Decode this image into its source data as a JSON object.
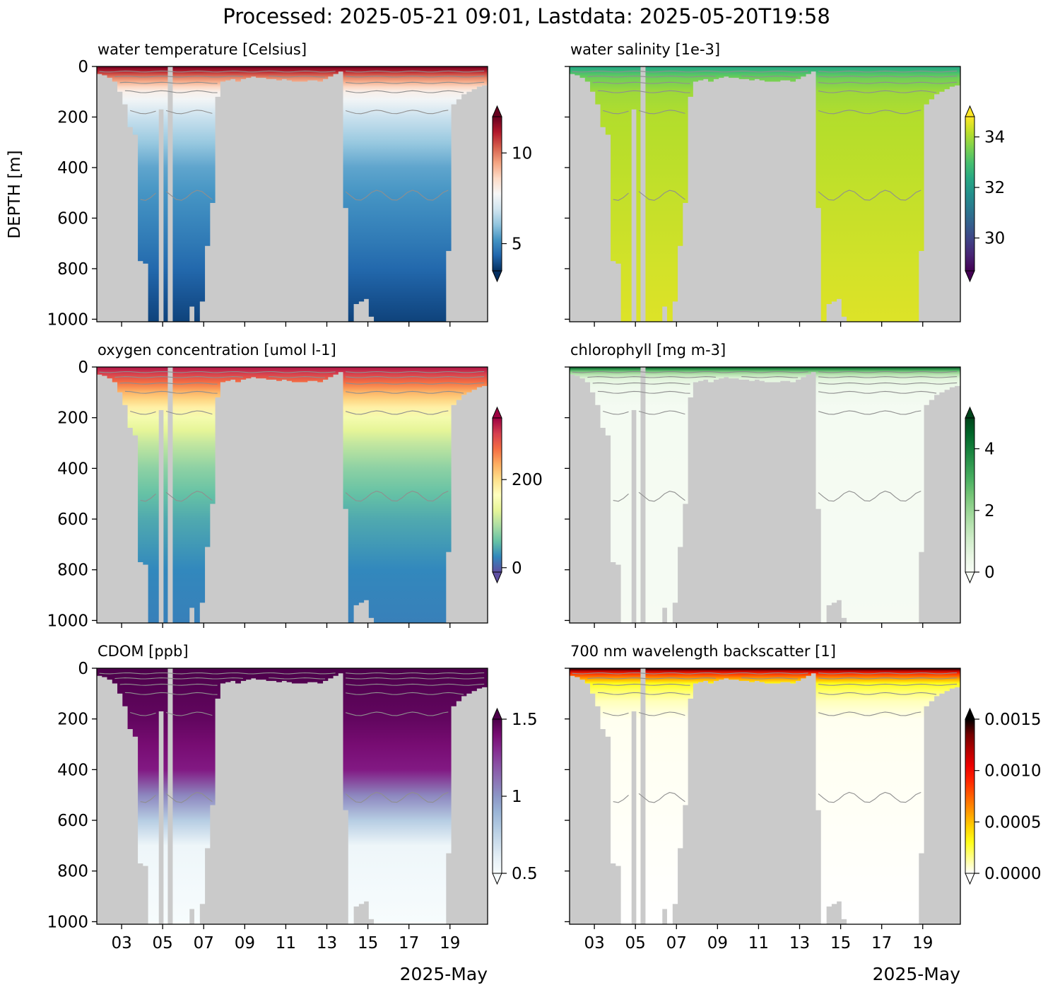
{
  "figure_title": "Processed: 2025-05-21 09:01, Lastdata: 2025-05-20T19:58",
  "y_axis_label": "DEPTH [m]",
  "x_axis_month_label": "2025-May",
  "x_tick_labels": [
    "03",
    "05",
    "07",
    "09",
    "11",
    "13",
    "15",
    "17",
    "19"
  ],
  "y_tick_labels": [
    "0",
    "200",
    "400",
    "600",
    "800",
    "1000"
  ],
  "colors": {
    "nodata": "#cacaca",
    "contour": "#8f8f8f"
  },
  "chart_data": [
    {
      "type": "heatmap",
      "title": "water temperature [Celsius]",
      "x": "date (May 2025)",
      "xlim": [
        "2025-05-01T19:00",
        "2025-05-20T20:00"
      ],
      "y": "DEPTH [m]",
      "ylim": [
        1010,
        0
      ],
      "grid": false,
      "colormap": "RdBu_r",
      "colorbar_range": [
        3.5,
        12
      ],
      "colorbar_ticks": [
        5,
        10
      ],
      "colorbar_extend": "both",
      "profile": [
        {
          "depth": 0,
          "value": 12
        },
        {
          "depth": 40,
          "value": 10
        },
        {
          "depth": 100,
          "value": 8
        },
        {
          "depth": 200,
          "value": 6.8
        },
        {
          "depth": 400,
          "value": 5.5
        },
        {
          "depth": 700,
          "value": 4.7
        },
        {
          "depth": 1000,
          "value": 3.8
        }
      ]
    },
    {
      "type": "heatmap",
      "title": "water salinity [1e-3]",
      "x": "date (May 2025)",
      "xlim": [
        "2025-05-01T19:00",
        "2025-05-20T20:00"
      ],
      "y": "DEPTH [m]",
      "ylim": [
        1010,
        0
      ],
      "grid": false,
      "colormap": "viridis",
      "colorbar_range": [
        28.7,
        34.8
      ],
      "colorbar_ticks": [
        30,
        32,
        34
      ],
      "colorbar_extend": "both",
      "profile": [
        {
          "depth": 0,
          "value": 32.3
        },
        {
          "depth": 40,
          "value": 33.4
        },
        {
          "depth": 100,
          "value": 33.9
        },
        {
          "depth": 200,
          "value": 34.1
        },
        {
          "depth": 600,
          "value": 34.3
        },
        {
          "depth": 1000,
          "value": 34.5
        }
      ]
    },
    {
      "type": "heatmap",
      "title": "oxygen concentration [umol l-1]",
      "x": "date (May 2025)",
      "xlim": [
        "2025-05-01T19:00",
        "2025-05-20T20:00"
      ],
      "y": "DEPTH [m]",
      "ylim": [
        1010,
        0
      ],
      "grid": false,
      "colormap": "Spectral_r",
      "colorbar_range": [
        -10,
        340
      ],
      "colorbar_ticks": [
        0,
        200
      ],
      "colorbar_extend": "both",
      "profile": [
        {
          "depth": 0,
          "value": 330
        },
        {
          "depth": 40,
          "value": 290
        },
        {
          "depth": 100,
          "value": 230
        },
        {
          "depth": 200,
          "value": 150
        },
        {
          "depth": 350,
          "value": 90
        },
        {
          "depth": 550,
          "value": 50
        },
        {
          "depth": 800,
          "value": 25
        },
        {
          "depth": 1000,
          "value": 20
        }
      ]
    },
    {
      "type": "heatmap",
      "title": "chlorophyll [mg m-3]",
      "x": "date (May 2025)",
      "xlim": [
        "2025-05-01T19:00",
        "2025-05-20T20:00"
      ],
      "y": "DEPTH [m]",
      "ylim": [
        1010,
        0
      ],
      "grid": false,
      "colormap": "Greens",
      "colorbar_range": [
        0,
        5
      ],
      "colorbar_ticks": [
        0,
        2,
        4
      ],
      "colorbar_extend": "both",
      "profile": [
        {
          "depth": 0,
          "value": 5
        },
        {
          "depth": 15,
          "value": 2.5
        },
        {
          "depth": 40,
          "value": 0.8
        },
        {
          "depth": 80,
          "value": 0.3
        },
        {
          "depth": 150,
          "value": 0.1
        },
        {
          "depth": 1000,
          "value": 0.05
        }
      ]
    },
    {
      "type": "heatmap",
      "title": "CDOM [ppb]",
      "x": "date (May 2025)",
      "xlim": [
        "2025-05-01T19:00",
        "2025-05-20T20:00"
      ],
      "y": "DEPTH [m]",
      "ylim": [
        1010,
        0
      ],
      "grid": false,
      "colormap": "BuPu",
      "colorbar_range": [
        0.5,
        1.5
      ],
      "colorbar_ticks": [
        0.5,
        1.0,
        1.5
      ],
      "colorbar_extend": "both",
      "profile": [
        {
          "depth": 0,
          "value": 1.5
        },
        {
          "depth": 200,
          "value": 1.45
        },
        {
          "depth": 400,
          "value": 1.35
        },
        {
          "depth": 550,
          "value": 0.9
        },
        {
          "depth": 700,
          "value": 0.55
        },
        {
          "depth": 1000,
          "value": 0.5
        }
      ]
    },
    {
      "type": "heatmap",
      "title": "700 nm wavelength backscatter [1]",
      "x": "date (May 2025)",
      "xlim": [
        "2025-05-01T19:00",
        "2025-05-20T20:00"
      ],
      "y": "DEPTH [m]",
      "ylim": [
        1010,
        0
      ],
      "grid": false,
      "colormap": "hot_r",
      "colorbar_range": [
        0,
        0.0015
      ],
      "colorbar_ticks": [
        0.0,
        0.0005,
        0.001,
        0.0015
      ],
      "colorbar_tick_labels": [
        "0.0000",
        "0.0005",
        "0.0010",
        "0.0015"
      ],
      "colorbar_extend": "both",
      "profile": [
        {
          "depth": 0,
          "value": 0.0015
        },
        {
          "depth": 20,
          "value": 0.0009
        },
        {
          "depth": 60,
          "value": 0.0003
        },
        {
          "depth": 120,
          "value": 0.0001
        },
        {
          "depth": 200,
          "value": 2e-05
        },
        {
          "depth": 1000,
          "value": 0
        }
      ]
    }
  ],
  "dive_coverage": {
    "description": "maximum sampled depth [m] per time bin; deeper region is no-data",
    "xlim": [
      "2025-05-01T19:00",
      "2025-05-20T20:00"
    ],
    "bin_hours": 6,
    "max_depth": [
      30,
      35,
      45,
      60,
      100,
      150,
      240,
      270,
      770,
      780,
      1010,
      1010,
      170,
      1010,
      1010,
      1010,
      1010,
      1010,
      950,
      1010,
      930,
      710,
      540,
      120,
      60,
      55,
      50,
      60,
      50,
      45,
      40,
      45,
      45,
      50,
      50,
      55,
      50,
      55,
      60,
      60,
      60,
      55,
      55,
      60,
      50,
      40,
      30,
      20,
      560,
      1010,
      940,
      930,
      920,
      990,
      1010,
      1010,
      1010,
      1010,
      1010,
      1010,
      1010,
      1010,
      1010,
      1010,
      1010,
      1010,
      1010,
      1010,
      730,
      150,
      130,
      110,
      100,
      90,
      80,
      75
    ],
    "gap_dates": [
      "2025-05-05T06:00"
    ],
    "isotherm_depths": [
      20,
      40,
      65,
      100,
      180,
      510
    ]
  }
}
